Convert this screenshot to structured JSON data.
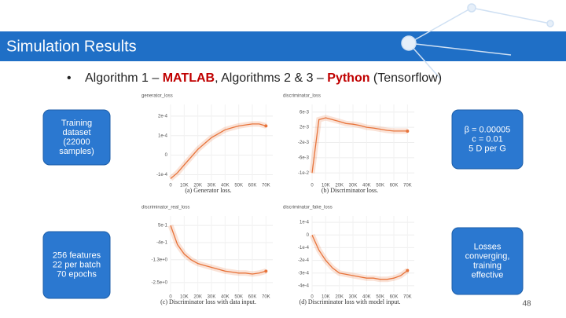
{
  "header": {
    "title": "Simulation Results"
  },
  "bullet": {
    "segments": [
      {
        "text": "Algorithm 1 – ",
        "emph": false
      },
      {
        "text": "MATLAB",
        "emph": true
      },
      {
        "text": ", Algorithms 2 & 3 – ",
        "emph": false
      },
      {
        "text": "Python",
        "emph": true
      },
      {
        "text": " (Tensorflow)",
        "emph": false
      }
    ]
  },
  "left_boxes": [
    {
      "lines": [
        "Training",
        "dataset",
        "(22000",
        "samples)"
      ]
    },
    {
      "lines": [
        "256 features",
        "22 per batch",
        "70 epochs"
      ]
    }
  ],
  "right_boxes": [
    {
      "lines": [
        "β = 0.00005",
        "c = 0.01",
        "5 D per G"
      ]
    },
    {
      "lines": [
        "Losses",
        "converging,",
        "training",
        "effective"
      ]
    }
  ],
  "page_number": "48",
  "chart_data": [
    {
      "type": "line",
      "title": "generator_loss",
      "caption": "(a) Generator loss.",
      "xlim": [
        0,
        75000
      ],
      "xticks": [
        0,
        {
          "value": 10000,
          "label": "10K"
        },
        {
          "value": 20000,
          "label": "20K"
        },
        {
          "value": 30000,
          "label": "30K"
        },
        {
          "value": 40000,
          "label": "40K"
        },
        {
          "value": 50000,
          "label": "50K"
        },
        {
          "value": 60000,
          "label": "60K"
        },
        {
          "value": 70000,
          "label": "70K"
        }
      ],
      "ylim": [
        -0.00013,
        0.00026
      ],
      "yticks": [
        {
          "value": 0.0002,
          "label": "2e-4"
        },
        {
          "value": 0.0001,
          "label": "1e-4"
        },
        0,
        {
          "value": -0.0001,
          "label": "-1e-4"
        }
      ],
      "grid": true,
      "x": [
        0,
        5000,
        10000,
        15000,
        20000,
        25000,
        30000,
        35000,
        40000,
        45000,
        50000,
        55000,
        60000,
        65000,
        70000
      ],
      "series": [
        {
          "color": "#e8743b",
          "values": [
            -0.00012,
            -9e-05,
            -5e-05,
            -1e-05,
            3e-05,
            6e-05,
            9e-05,
            0.00011,
            0.00013,
            0.00014,
            0.00015,
            0.000155,
            0.00016,
            0.00016,
            0.00015
          ]
        }
      ]
    },
    {
      "type": "line",
      "title": "discriminator_loss",
      "caption": "(b) Discriminator loss.",
      "xlim": [
        0,
        75000
      ],
      "xticks": [
        0,
        {
          "value": 10000,
          "label": "10K"
        },
        {
          "value": 20000,
          "label": "20K"
        },
        {
          "value": 30000,
          "label": "30K"
        },
        {
          "value": 40000,
          "label": "40K"
        },
        {
          "value": 50000,
          "label": "50K"
        },
        {
          "value": 60000,
          "label": "60K"
        },
        {
          "value": 70000,
          "label": "70K"
        }
      ],
      "ylim": [
        -0.012,
        0.008
      ],
      "yticks": [
        {
          "value": 0.006,
          "label": "6e-3"
        },
        {
          "value": 0.002,
          "label": "2e-3"
        },
        {
          "value": -0.002,
          "label": "-2e-3"
        },
        {
          "value": -0.006,
          "label": "-6e-3"
        },
        {
          "value": -0.01,
          "label": "-1e-2"
        }
      ],
      "grid": true,
      "x": [
        0,
        5000,
        10000,
        15000,
        20000,
        25000,
        30000,
        35000,
        40000,
        45000,
        50000,
        55000,
        60000,
        65000,
        70000
      ],
      "series": [
        {
          "color": "#e8743b",
          "values": [
            -0.01,
            0.004,
            0.0045,
            0.004,
            0.0035,
            0.003,
            0.0028,
            0.0025,
            0.002,
            0.0018,
            0.0015,
            0.0012,
            0.001,
            0.001,
            0.001
          ]
        }
      ]
    },
    {
      "type": "line",
      "title": "discriminator_real_loss",
      "caption": "(c) Discriminator loss with data input.",
      "xlim": [
        0,
        75000
      ],
      "xticks": [
        0,
        {
          "value": 10000,
          "label": "10K"
        },
        {
          "value": 20000,
          "label": "20K"
        },
        {
          "value": 30000,
          "label": "30K"
        },
        {
          "value": 40000,
          "label": "40K"
        },
        {
          "value": 50000,
          "label": "50K"
        },
        {
          "value": 60000,
          "label": "60K"
        },
        {
          "value": 70000,
          "label": "70K"
        }
      ],
      "ylim": [
        -3,
        1
      ],
      "yticks": [
        {
          "value": 0.5,
          "label": "5e-1"
        },
        {
          "value": -0.4,
          "label": "-4e-1"
        },
        {
          "value": -1.3,
          "label": "-1.3e+0"
        },
        {
          "value": -2.5,
          "label": "-2.5e+0"
        }
      ],
      "grid": true,
      "x": [
        0,
        5000,
        10000,
        15000,
        20000,
        25000,
        30000,
        35000,
        40000,
        45000,
        50000,
        55000,
        60000,
        65000,
        70000
      ],
      "series": [
        {
          "color": "#e8743b",
          "values": [
            0.5,
            -0.5,
            -1.0,
            -1.3,
            -1.5,
            -1.6,
            -1.7,
            -1.8,
            -1.9,
            -1.95,
            -2.0,
            -2.0,
            -2.05,
            -2.0,
            -1.9
          ]
        }
      ]
    },
    {
      "type": "line",
      "title": "discriminator_fake_loss",
      "caption": "(d) Discriminator loss with model input.",
      "xlim": [
        0,
        75000
      ],
      "xticks": [
        0,
        {
          "value": 10000,
          "label": "10K"
        },
        {
          "value": 20000,
          "label": "20K"
        },
        {
          "value": 30000,
          "label": "30K"
        },
        {
          "value": 40000,
          "label": "40K"
        },
        {
          "value": 50000,
          "label": "50K"
        },
        {
          "value": 60000,
          "label": "60K"
        },
        {
          "value": 70000,
          "label": "70K"
        }
      ],
      "ylim": [
        -0.00045,
        0.00015
      ],
      "yticks": [
        {
          "value": 0.0001,
          "label": "1e-4"
        },
        0,
        {
          "value": -0.0001,
          "label": "-1e-4"
        },
        {
          "value": -0.0002,
          "label": "-2e-4"
        },
        {
          "value": -0.0003,
          "label": "-3e-4"
        },
        {
          "value": -0.0004,
          "label": "-4e-4"
        }
      ],
      "grid": true,
      "x": [
        0,
        5000,
        10000,
        15000,
        20000,
        25000,
        30000,
        35000,
        40000,
        45000,
        50000,
        55000,
        60000,
        65000,
        70000
      ],
      "series": [
        {
          "color": "#e8743b",
          "values": [
            0,
            -0.00012,
            -0.0002,
            -0.00026,
            -0.0003,
            -0.00031,
            -0.00032,
            -0.00033,
            -0.00034,
            -0.00034,
            -0.00035,
            -0.00035,
            -0.00034,
            -0.00032,
            -0.00028
          ]
        }
      ]
    }
  ]
}
